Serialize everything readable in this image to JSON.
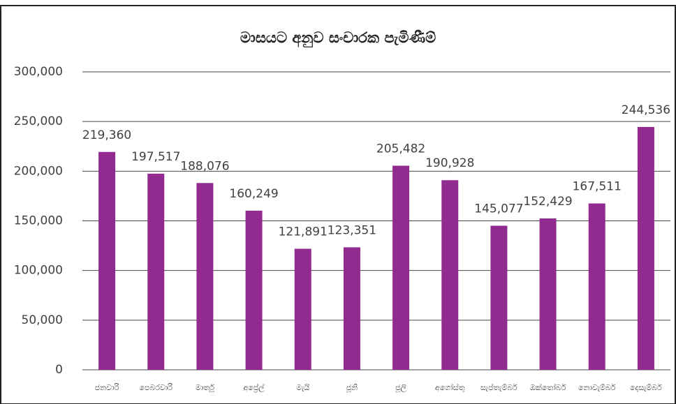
{
  "chart_data": {
    "type": "bar",
    "title": "මාසයට අනුව සංචාරක පැමිණීම්",
    "categories": [
      "ජනවාරි",
      "පෙබරවාරි",
      "මාර්තු",
      "අප්‍රේල්",
      "මැයි",
      "ජූනි",
      "ජූලි",
      "අගෝස්තු",
      "සැප්තැම්බර්",
      "ඔක්තෝබර්",
      "නොවැම්බර්",
      "දෙසැම්බර්"
    ],
    "values": [
      219360,
      197517,
      188076,
      160249,
      121891,
      123351,
      205482,
      190928,
      145077,
      152429,
      167511,
      244536
    ],
    "value_labels": [
      "219,360",
      "197,517",
      "188,076",
      "160,249",
      "121,891",
      "123,351",
      "205,482",
      "190,928",
      "145,077",
      "152,429",
      "167,511",
      "244,536"
    ],
    "color": "#922b8f",
    "ylim": [
      0,
      300000
    ],
    "yticks": [
      0,
      {
        "value": 50000,
        "label": "50,000"
      },
      {
        "value": 100000,
        "label": "100,000"
      },
      {
        "value": 150000,
        "label": "150,000"
      },
      {
        "value": 200000,
        "label": "200,000"
      },
      {
        "value": 250000,
        "label": "250,000"
      },
      {
        "value": 300000,
        "label": "300,000"
      }
    ],
    "grid": true
  }
}
